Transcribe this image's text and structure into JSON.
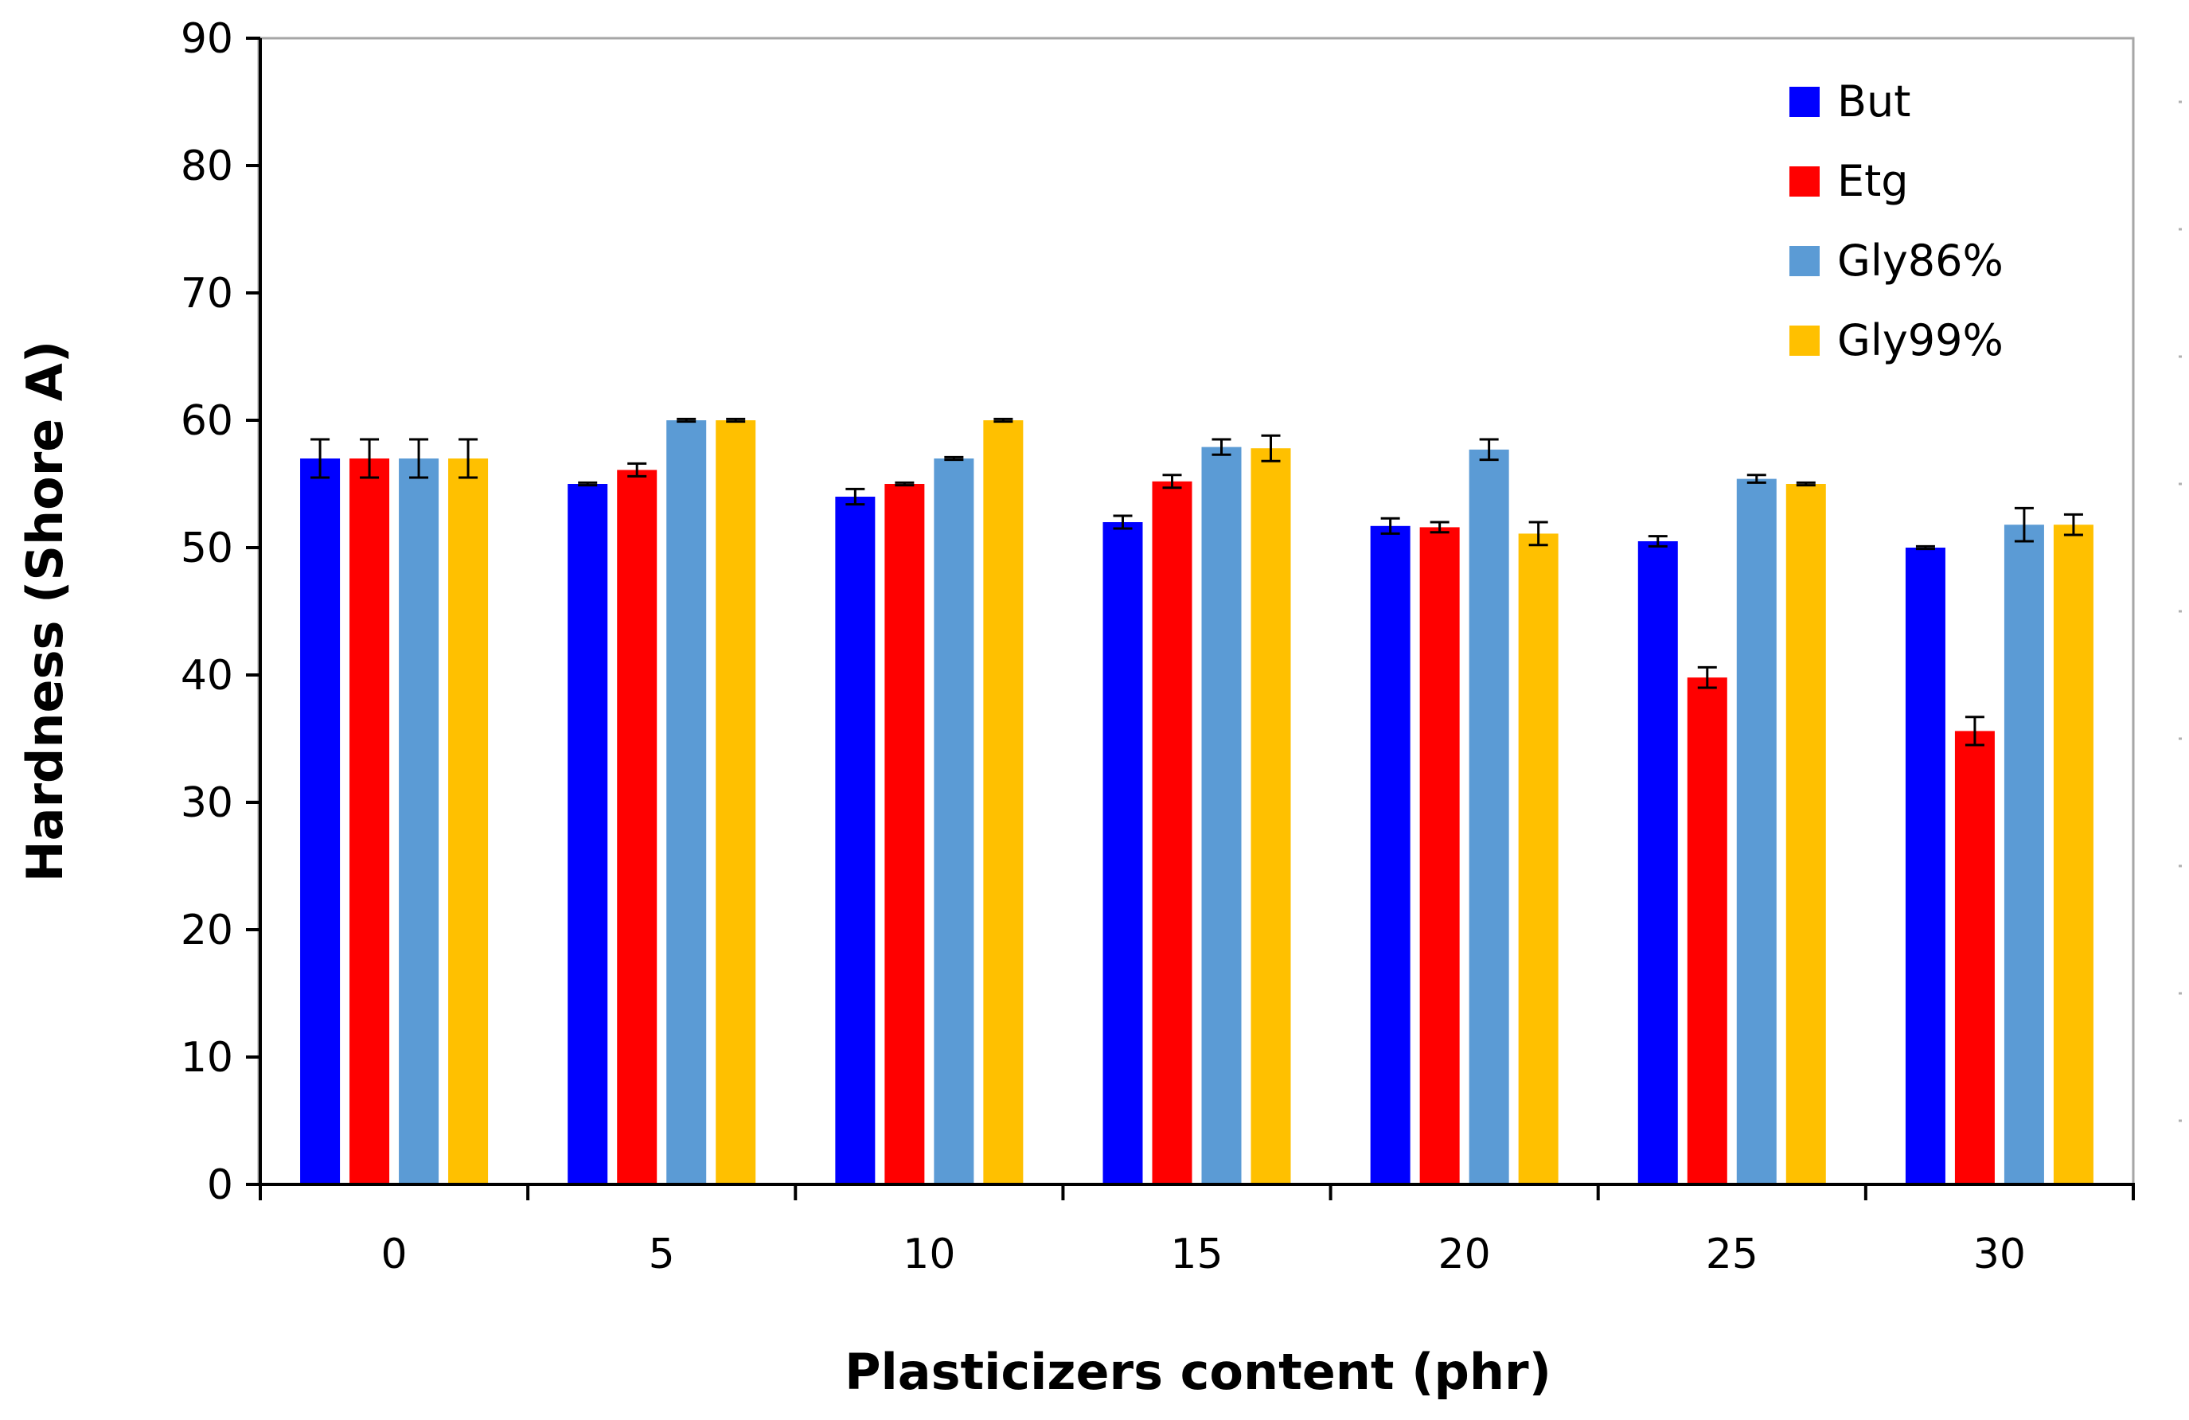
{
  "chart_data": {
    "type": "bar",
    "title": "",
    "xlabel": "Plasticizers content (phr)",
    "ylabel": "Hardness (Shore A)",
    "ylim": [
      0,
      90
    ],
    "yticks": [
      0,
      10,
      20,
      30,
      40,
      50,
      60,
      70,
      80,
      90
    ],
    "categories": [
      "0",
      "5",
      "10",
      "15",
      "20",
      "25",
      "30"
    ],
    "legend_position": "top-right",
    "grid": false,
    "series": [
      {
        "name": "But",
        "color": "#0000ff",
        "values": [
          57,
          55,
          54,
          52,
          51.7,
          50.5,
          50
        ],
        "errors": [
          1.5,
          0.1,
          0.6,
          0.5,
          0.6,
          0.4,
          0.1
        ]
      },
      {
        "name": "Etg",
        "color": "#ff0000",
        "values": [
          57,
          56.1,
          55,
          55.2,
          51.6,
          39.8,
          35.6
        ],
        "errors": [
          1.5,
          0.5,
          0.1,
          0.5,
          0.4,
          0.8,
          1.1
        ]
      },
      {
        "name": "Gly86%",
        "color": "#5b9bd5",
        "values": [
          57,
          60,
          57,
          57.9,
          57.7,
          55.4,
          51.8
        ],
        "errors": [
          1.5,
          0.1,
          0.1,
          0.6,
          0.8,
          0.3,
          1.3
        ]
      },
      {
        "name": "Gly99%",
        "color": "#ffc000",
        "values": [
          57,
          60,
          60,
          57.8,
          51.1,
          55,
          51.8
        ],
        "errors": [
          1.5,
          0.1,
          0.1,
          1.0,
          0.9,
          0.1,
          0.8
        ]
      }
    ]
  }
}
